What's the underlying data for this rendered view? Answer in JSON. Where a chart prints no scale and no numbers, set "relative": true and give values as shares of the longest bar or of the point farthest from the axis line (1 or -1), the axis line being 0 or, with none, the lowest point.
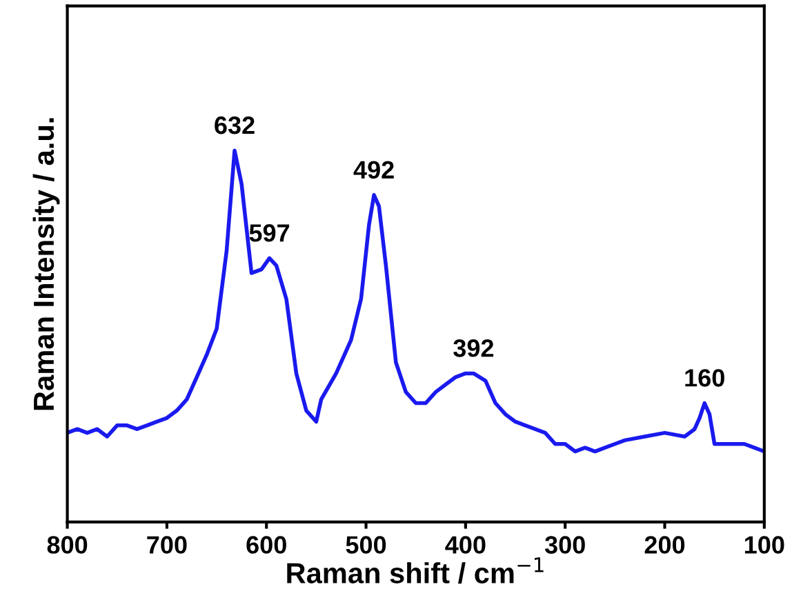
{
  "chart_data": {
    "type": "line",
    "xlabel": "Raman shift / cm$^{−1}$",
    "ylabel": "Raman Intensity / a.u.",
    "relative": true,
    "xlim": [
      800,
      100
    ],
    "xticks": [
      800,
      700,
      600,
      500,
      400,
      300,
      200,
      100
    ],
    "tick_labels": "x",
    "grid": false,
    "series": [
      {
        "color": "#1a1aee",
        "x": [
          800,
          790,
          780,
          770,
          760,
          750,
          740,
          730,
          720,
          710,
          700,
          690,
          680,
          670,
          660,
          650,
          640,
          632,
          625,
          615,
          605,
          597,
          590,
          580,
          570,
          560,
          550,
          545,
          530,
          515,
          505,
          497,
          492,
          487,
          480,
          470,
          460,
          450,
          440,
          430,
          420,
          410,
          400,
          392,
          380,
          370,
          360,
          350,
          340,
          320,
          310,
          300,
          290,
          280,
          270,
          260,
          250,
          240,
          220,
          200,
          180,
          170,
          165,
          160,
          155,
          150,
          140,
          130,
          120,
          110,
          100
        ],
        "values": [
          0.24,
          0.25,
          0.24,
          0.25,
          0.23,
          0.26,
          0.26,
          0.25,
          0.26,
          0.27,
          0.28,
          0.3,
          0.33,
          0.39,
          0.45,
          0.52,
          0.73,
          1.0,
          0.91,
          0.67,
          0.68,
          0.71,
          0.69,
          0.6,
          0.4,
          0.3,
          0.27,
          0.33,
          0.4,
          0.49,
          0.6,
          0.8,
          0.88,
          0.85,
          0.69,
          0.43,
          0.35,
          0.32,
          0.32,
          0.35,
          0.37,
          0.39,
          0.4,
          0.4,
          0.38,
          0.32,
          0.29,
          0.27,
          0.26,
          0.24,
          0.21,
          0.21,
          0.19,
          0.2,
          0.19,
          0.2,
          0.21,
          0.22,
          0.23,
          0.24,
          0.23,
          0.25,
          0.28,
          0.32,
          0.29,
          0.21,
          0.21,
          0.21,
          0.21,
          0.2,
          0.19
        ]
      }
    ],
    "annotations": [
      {
        "text": "632",
        "x": 632,
        "y": 1.0
      },
      {
        "text": "597",
        "x": 597,
        "y": 0.71
      },
      {
        "text": "492",
        "x": 492,
        "y": 0.88
      },
      {
        "text": "392",
        "x": 392,
        "y": 0.4
      },
      {
        "text": "160",
        "x": 160,
        "y": 0.32
      }
    ]
  }
}
